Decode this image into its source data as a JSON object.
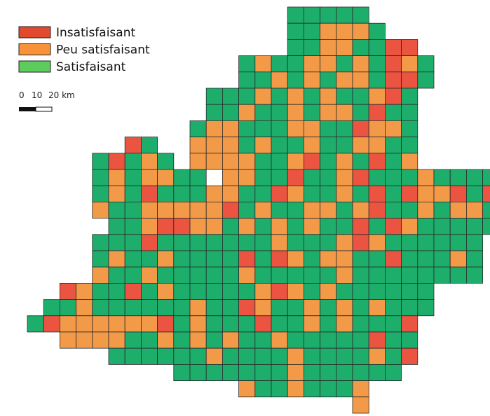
{
  "legend": {
    "items": [
      {
        "label": "Insatisfaisant",
        "color": "#e14a2e"
      },
      {
        "label": "Peu satisfaisant",
        "color": "#f7923a"
      },
      {
        "label": "Satisfaisant",
        "color": "#5ccc5c"
      }
    ]
  },
  "scale": {
    "labels": [
      "0",
      "10",
      "20 km"
    ]
  }
}
